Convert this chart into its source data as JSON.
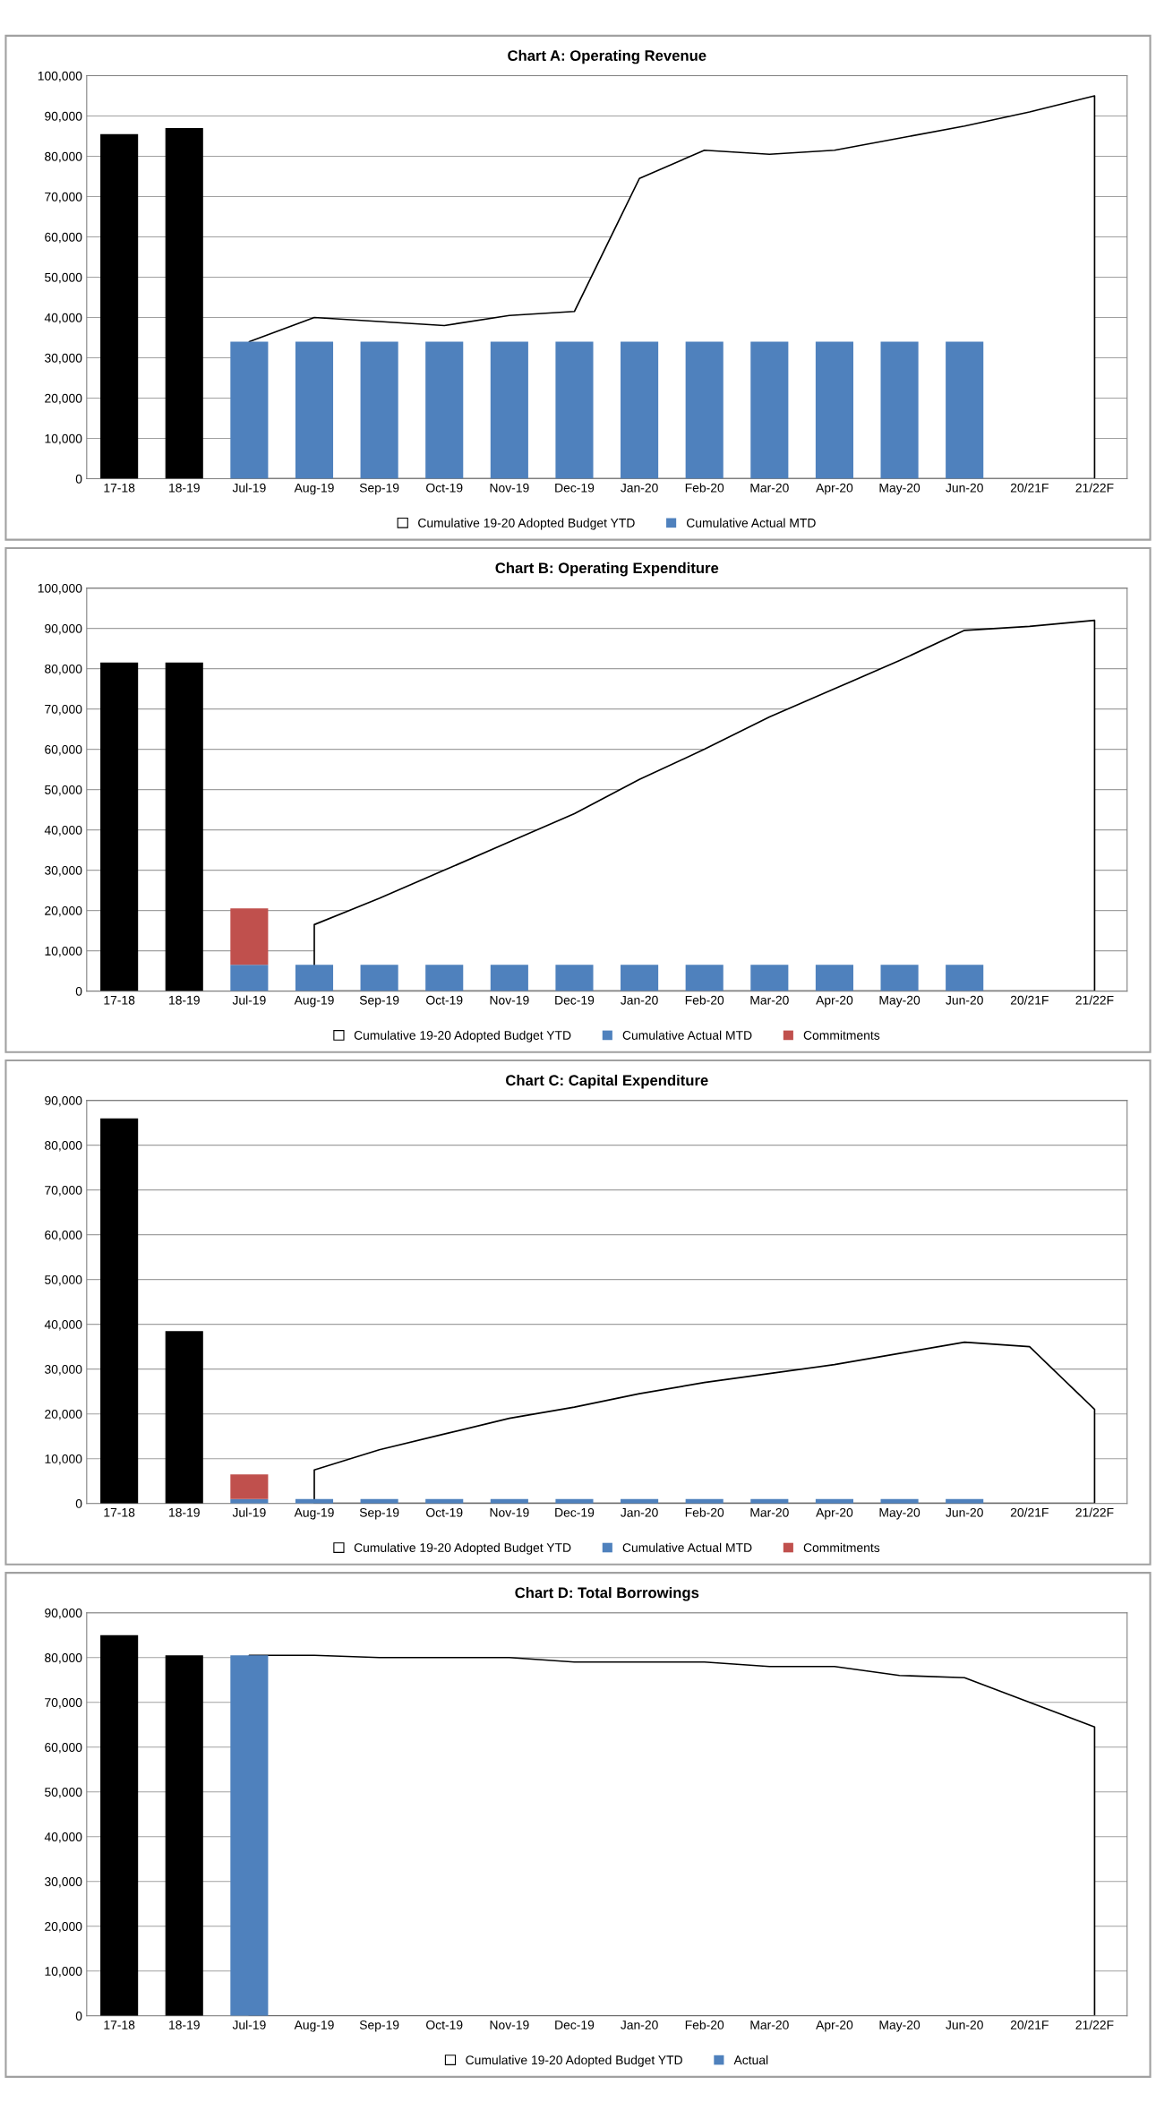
{
  "chart_data": [
    {
      "type": "bar",
      "title": "Chart A: Operating Revenue",
      "grid": "y",
      "legend": "bottom",
      "categories": [
        "17-18",
        "18-19",
        "Jul-19",
        "Aug-19",
        "Sep-19",
        "Oct-19",
        "Nov-19",
        "Dec-19",
        "Jan-20",
        "Feb-20",
        "Mar-20",
        "Apr-20",
        "May-20",
        "Jun-20",
        "20/21F",
        "21/22F"
      ],
      "ylim": [
        0,
        100000
      ],
      "yticks": [
        {
          "value": 0,
          "label": "0"
        },
        {
          "value": 10000,
          "label": "10,000"
        },
        {
          "value": 20000,
          "label": "20,000"
        },
        {
          "value": 30000,
          "label": "30,000"
        },
        {
          "value": 40000,
          "label": "40,000"
        },
        {
          "value": 50000,
          "label": "50,000"
        },
        {
          "value": 60000,
          "label": "60,000"
        },
        {
          "value": 70000,
          "label": "70,000"
        },
        {
          "value": 80000,
          "label": "80,000"
        },
        {
          "value": 90000,
          "label": "90,000"
        },
        {
          "value": 100000,
          "label": "100,000"
        }
      ],
      "series": [
        {
          "name": "Cumulative 19-20 Adopted Budget YTD",
          "type": "area",
          "color": "#ffffff",
          "values": [
            null,
            null,
            34000,
            40000,
            39000,
            38000,
            40500,
            41500,
            74500,
            81500,
            80500,
            81500,
            84500,
            87500,
            91000,
            95000
          ]
        },
        {
          "type": "bar",
          "color": "#000000",
          "values": [
            85500,
            87000,
            null,
            null,
            null,
            null,
            null,
            null,
            null,
            null,
            null,
            null,
            null,
            null,
            null,
            null
          ]
        },
        {
          "name": "Cumulative Actual MTD",
          "type": "bar",
          "color": "#4f81bd",
          "values": [
            null,
            null,
            34000,
            34000,
            34000,
            34000,
            34000,
            34000,
            34000,
            34000,
            34000,
            34000,
            34000,
            34000,
            null,
            null
          ]
        }
      ]
    },
    {
      "type": "bar",
      "title": "Chart B: Operating Expenditure",
      "grid": "y",
      "legend": "bottom",
      "categories": [
        "17-18",
        "18-19",
        "Jul-19",
        "Aug-19",
        "Sep-19",
        "Oct-19",
        "Nov-19",
        "Dec-19",
        "Jan-20",
        "Feb-20",
        "Mar-20",
        "Apr-20",
        "May-20",
        "Jun-20",
        "20/21F",
        "21/22F"
      ],
      "ylim": [
        0,
        100000
      ],
      "yticks": [
        {
          "value": 0,
          "label": "0"
        },
        {
          "value": 10000,
          "label": "10,000"
        },
        {
          "value": 20000,
          "label": "20,000"
        },
        {
          "value": 30000,
          "label": "30,000"
        },
        {
          "value": 40000,
          "label": "40,000"
        },
        {
          "value": 50000,
          "label": "50,000"
        },
        {
          "value": 60000,
          "label": "60,000"
        },
        {
          "value": 70000,
          "label": "70,000"
        },
        {
          "value": 80000,
          "label": "80,000"
        },
        {
          "value": 90000,
          "label": "90,000"
        },
        {
          "value": 100000,
          "label": "100,000"
        }
      ],
      "series": [
        {
          "name": "Cumulative 19-20 Adopted Budget YTD",
          "type": "area",
          "color": "#ffffff",
          "values": [
            null,
            null,
            null,
            16500,
            23000,
            30000,
            37000,
            44000,
            52500,
            60000,
            68000,
            75000,
            82000,
            89500,
            90500,
            92000
          ]
        },
        {
          "type": "bar",
          "color": "#000000",
          "values": [
            81500,
            81500,
            null,
            null,
            null,
            null,
            null,
            null,
            null,
            null,
            null,
            null,
            null,
            null,
            null,
            null
          ]
        },
        {
          "name": "Cumulative Actual MTD",
          "type": "bar",
          "color": "#4f81bd",
          "values": [
            null,
            null,
            6500,
            6500,
            6500,
            6500,
            6500,
            6500,
            6500,
            6500,
            6500,
            6500,
            6500,
            6500,
            null,
            null
          ]
        },
        {
          "name": "Commitments",
          "color": "#c0504d",
          "base": [
            null,
            null,
            6500,
            null,
            null,
            null,
            null,
            null,
            null,
            null,
            null,
            null,
            null,
            null,
            null,
            null
          ],
          "values": [
            null,
            null,
            14000,
            null,
            null,
            null,
            null,
            null,
            null,
            null,
            null,
            null,
            null,
            null,
            null,
            null
          ]
        }
      ]
    },
    {
      "type": "bar",
      "title": "Chart C: Capital Expenditure",
      "grid": "y",
      "legend": "bottom",
      "categories": [
        "17-18",
        "18-19",
        "Jul-19",
        "Aug-19",
        "Sep-19",
        "Oct-19",
        "Nov-19",
        "Dec-19",
        "Jan-20",
        "Feb-20",
        "Mar-20",
        "Apr-20",
        "May-20",
        "Jun-20",
        "20/21F",
        "21/22F"
      ],
      "ylim": [
        0,
        90000
      ],
      "yticks": [
        {
          "value": 0,
          "label": "0"
        },
        {
          "value": 10000,
          "label": "10,000"
        },
        {
          "value": 20000,
          "label": "20,000"
        },
        {
          "value": 30000,
          "label": "30,000"
        },
        {
          "value": 40000,
          "label": "40,000"
        },
        {
          "value": 50000,
          "label": "50,000"
        },
        {
          "value": 60000,
          "label": "60,000"
        },
        {
          "value": 70000,
          "label": "70,000"
        },
        {
          "value": 80000,
          "label": "80,000"
        },
        {
          "value": 90000,
          "label": "90,000"
        }
      ],
      "series": [
        {
          "name": "Cumulative 19-20 Adopted Budget YTD",
          "type": "area",
          "color": "#ffffff",
          "values": [
            null,
            null,
            null,
            7500,
            12000,
            15500,
            19000,
            21500,
            24500,
            27000,
            29000,
            31000,
            33500,
            36000,
            35000,
            21000
          ]
        },
        {
          "type": "bar",
          "color": "#000000",
          "values": [
            86000,
            38500,
            null,
            null,
            null,
            null,
            null,
            null,
            null,
            null,
            null,
            null,
            null,
            null,
            null,
            null
          ]
        },
        {
          "name": "Cumulative Actual MTD",
          "type": "bar",
          "color": "#4f81bd",
          "values": [
            null,
            null,
            1000,
            1000,
            1000,
            1000,
            1000,
            1000,
            1000,
            1000,
            1000,
            1000,
            1000,
            1000,
            null,
            null
          ]
        },
        {
          "name": "Commitments",
          "color": "#c0504d",
          "base": [
            null,
            null,
            1000,
            null,
            null,
            null,
            null,
            null,
            null,
            null,
            null,
            null,
            null,
            null,
            null,
            null
          ],
          "values": [
            null,
            null,
            5500,
            null,
            null,
            null,
            null,
            null,
            null,
            null,
            null,
            null,
            null,
            null,
            null,
            null
          ]
        }
      ]
    },
    {
      "type": "bar",
      "title": "Chart D: Total Borrowings",
      "grid": "y",
      "legend": "bottom",
      "categories": [
        "17-18",
        "18-19",
        "Jul-19",
        "Aug-19",
        "Sep-19",
        "Oct-19",
        "Nov-19",
        "Dec-19",
        "Jan-20",
        "Feb-20",
        "Mar-20",
        "Apr-20",
        "May-20",
        "Jun-20",
        "20/21F",
        "21/22F"
      ],
      "ylim": [
        0,
        90000
      ],
      "yticks": [
        {
          "value": 0,
          "label": "0"
        },
        {
          "value": 10000,
          "label": "10,000"
        },
        {
          "value": 20000,
          "label": "20,000"
        },
        {
          "value": 30000,
          "label": "30,000"
        },
        {
          "value": 40000,
          "label": "40,000"
        },
        {
          "value": 50000,
          "label": "50,000"
        },
        {
          "value": 60000,
          "label": "60,000"
        },
        {
          "value": 70000,
          "label": "70,000"
        },
        {
          "value": 80000,
          "label": "80,000"
        },
        {
          "value": 90000,
          "label": "90,000"
        }
      ],
      "series": [
        {
          "name": "Cumulative 19-20 Adopted Budget YTD",
          "type": "area",
          "color": "#ffffff",
          "values": [
            null,
            null,
            80500,
            80500,
            80000,
            80000,
            80000,
            79000,
            79000,
            79000,
            78000,
            78000,
            76000,
            75500,
            70000,
            64500
          ]
        },
        {
          "type": "bar",
          "color": "#000000",
          "values": [
            85000,
            80500,
            null,
            null,
            null,
            null,
            null,
            null,
            null,
            null,
            null,
            null,
            null,
            null,
            null,
            null
          ]
        },
        {
          "name": "Actual",
          "type": "bar",
          "color": "#4f81bd",
          "values": [
            null,
            null,
            80500,
            null,
            null,
            null,
            null,
            null,
            null,
            null,
            null,
            null,
            null,
            null,
            null,
            null
          ]
        }
      ]
    }
  ]
}
